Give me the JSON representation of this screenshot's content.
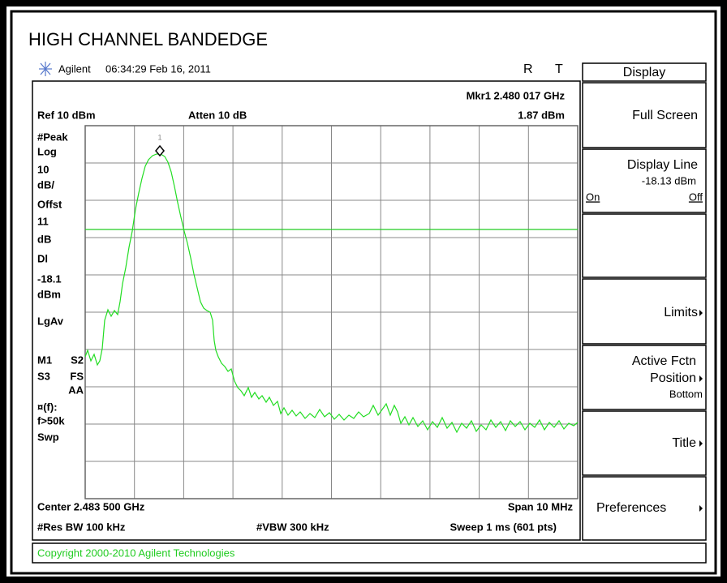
{
  "header": {
    "title": "HIGH CHANNEL BANDEDGE",
    "instrument": "Agilent",
    "timestamp": "06:34:29  Feb 16, 2011",
    "status": [
      "R",
      "T"
    ]
  },
  "screen": {
    "marker": "Mkr1  2.480 017 GHz",
    "ref": "Ref 10 dBm",
    "atten": "Atten 10 dB",
    "marker_level": "1.87 dBm",
    "marker_id": "1",
    "left_labels": [
      "#Peak",
      "Log",
      "10",
      "dB/",
      "Offst",
      "11",
      "dB",
      "Dl",
      "-18.1",
      "dBm",
      "LgAv",
      "M1",
      "S2",
      "S3",
      "FS",
      "AA",
      "¤(f):",
      "f>50k",
      "Swp"
    ],
    "center": "Center 2.483 500 GHz",
    "span": "Span 10 MHz",
    "res_bw": "#Res BW 100 kHz",
    "vbw": "#VBW 300 kHz",
    "sweep": "Sweep 1 ms (601 pts)"
  },
  "softkeys": {
    "header": "Display",
    "full_screen": "Full Screen",
    "display_line": "Display Line",
    "display_line_value": "-18.13 dBm",
    "on": "On",
    "off": "Off",
    "limits": "Limits",
    "active_fctn": "Active Fctn",
    "position": "Position",
    "bottom": "Bottom",
    "title": "Title",
    "preferences": "Preferences"
  },
  "footer": {
    "copyright": "Copyright 2000-2010 Agilent Technologies"
  }
}
